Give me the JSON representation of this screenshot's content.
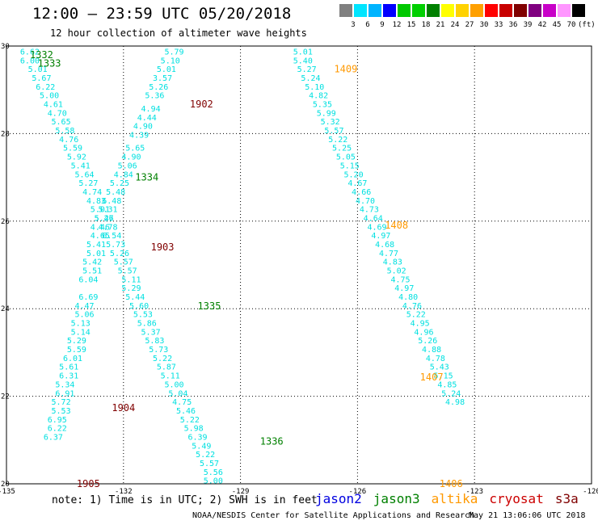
{
  "header": {
    "title": "12:00 — 23:59 UTC 05/20/2018",
    "subtitle": "12 hour collection of altimeter wave heights"
  },
  "scale": {
    "labels": [
      "3",
      "6",
      "9",
      "12",
      "15",
      "18",
      "21",
      "24",
      "27",
      "30",
      "33",
      "36",
      "39",
      "42",
      "45",
      "70",
      "(ft)"
    ],
    "colors": [
      "#808080",
      "#00e5ff",
      "#00b4ff",
      "#0000ff",
      "#00c800",
      "#00d000",
      "#008000",
      "#ffff00",
      "#ffd200",
      "#ffa000",
      "#ff0000",
      "#c80000",
      "#800000",
      "#800080",
      "#c800c8",
      "#ff96ff",
      "#000000"
    ]
  },
  "footer": {
    "note": "note: 1) Time is in UTC; 2) SWH is in feet",
    "satellites": [
      {
        "name": "jason2",
        "color": "#0000e0"
      },
      {
        "name": "jason3",
        "color": "#008000"
      },
      {
        "name": "altika",
        "color": "#ff9900"
      },
      {
        "name": "cryosat",
        "color": "#cc0000"
      },
      {
        "name": "s3a",
        "color": "#800000"
      }
    ],
    "credit": "NOAA/NESDIS Center for Satellite Applications and Research",
    "timestamp": "May 21 13:06:06 UTC 2018"
  },
  "chart_data": {
    "type": "scatter",
    "title": "12:00 — 23:59 UTC 05/20/2018",
    "subtitle": "12 hour collection of altimeter wave heights",
    "xlim": [
      -135,
      -120
    ],
    "ylim": [
      20,
      30
    ],
    "x_ticks": [
      "-135",
      "-132",
      "-129",
      "-126",
      "-123",
      "-120"
    ],
    "y_ticks": [
      "20",
      "22",
      "24",
      "26",
      "28",
      "30"
    ],
    "grid": true,
    "value_color": "#00e0e0",
    "tracks": [
      {
        "name": "jason3",
        "color": "#008000",
        "labels": [
          {
            "text": "1332",
            "lon": -134.1,
            "lat": 29.82
          },
          {
            "text": "1333",
            "lon": -133.9,
            "lat": 29.62
          },
          {
            "text": "1334",
            "lon": -131.4,
            "lat": 27.02
          },
          {
            "text": "1335",
            "lon": -129.8,
            "lat": 24.08
          },
          {
            "text": "1336",
            "lon": -128.2,
            "lat": 20.99
          }
        ],
        "points": [
          {
            "lon": -134.4,
            "lat": 29.88,
            "v": 6.62
          },
          {
            "lon": -134.4,
            "lat": 29.68,
            "v": 6.0
          },
          {
            "lon": -134.2,
            "lat": 29.48,
            "v": 5.01
          },
          {
            "lon": -134.1,
            "lat": 29.28,
            "v": 5.67
          },
          {
            "lon": -134.0,
            "lat": 29.08,
            "v": 6.22
          },
          {
            "lon": -133.9,
            "lat": 28.88,
            "v": 5.0
          },
          {
            "lon": -133.8,
            "lat": 28.68,
            "v": 4.61
          },
          {
            "lon": -133.7,
            "lat": 28.48,
            "v": 4.7
          },
          {
            "lon": -133.6,
            "lat": 28.28,
            "v": 5.65
          },
          {
            "lon": -133.5,
            "lat": 28.08,
            "v": 5.58
          },
          {
            "lon": -133.4,
            "lat": 27.88,
            "v": 4.76
          },
          {
            "lon": -133.3,
            "lat": 27.68,
            "v": 5.59
          },
          {
            "lon": -133.2,
            "lat": 27.48,
            "v": 5.92
          },
          {
            "lon": -133.1,
            "lat": 27.28,
            "v": 5.41
          },
          {
            "lon": -133.0,
            "lat": 27.08,
            "v": 5.64
          },
          {
            "lon": -132.9,
            "lat": 26.88,
            "v": 5.27
          },
          {
            "lon": -132.8,
            "lat": 26.68,
            "v": 4.74
          },
          {
            "lon": -132.7,
            "lat": 26.48,
            "v": 4.83
          },
          {
            "lon": -132.6,
            "lat": 26.28,
            "v": 5.01
          },
          {
            "lon": -132.5,
            "lat": 26.08,
            "v": 5.26
          },
          {
            "lon": -132.4,
            "lat": 25.88,
            "v": 4.78
          },
          {
            "lon": -132.3,
            "lat": 25.68,
            "v": 6.54
          },
          {
            "lon": -132.2,
            "lat": 25.48,
            "v": 5.73
          },
          {
            "lon": -132.1,
            "lat": 25.28,
            "v": 5.26
          },
          {
            "lon": -132.0,
            "lat": 25.08,
            "v": 5.57
          },
          {
            "lon": -131.9,
            "lat": 24.88,
            "v": 5.57
          },
          {
            "lon": -131.8,
            "lat": 24.68,
            "v": 5.11
          },
          {
            "lon": -131.8,
            "lat": 24.48,
            "v": 5.29
          },
          {
            "lon": -131.7,
            "lat": 24.28,
            "v": 5.44
          },
          {
            "lon": -131.6,
            "lat": 24.08,
            "v": 5.6
          },
          {
            "lon": -131.5,
            "lat": 23.88,
            "v": 5.53
          },
          {
            "lon": -131.4,
            "lat": 23.68,
            "v": 5.86
          },
          {
            "lon": -131.3,
            "lat": 23.48,
            "v": 5.37
          },
          {
            "lon": -131.2,
            "lat": 23.28,
            "v": 5.83
          },
          {
            "lon": -131.1,
            "lat": 23.08,
            "v": 5.73
          },
          {
            "lon": -131.0,
            "lat": 22.88,
            "v": 5.22
          },
          {
            "lon": -130.9,
            "lat": 22.68,
            "v": 5.87
          },
          {
            "lon": -130.8,
            "lat": 22.48,
            "v": 5.11
          },
          {
            "lon": -130.7,
            "lat": 22.28,
            "v": 5.0
          },
          {
            "lon": -130.6,
            "lat": 22.08,
            "v": 5.04
          },
          {
            "lon": -130.5,
            "lat": 21.88,
            "v": 4.75
          },
          {
            "lon": -130.4,
            "lat": 21.68,
            "v": 5.46
          },
          {
            "lon": -130.3,
            "lat": 21.48,
            "v": 5.22
          },
          {
            "lon": -130.2,
            "lat": 21.28,
            "v": 5.98
          },
          {
            "lon": -130.1,
            "lat": 21.08,
            "v": 6.39
          },
          {
            "lon": -130.0,
            "lat": 20.88,
            "v": 5.49
          },
          {
            "lon": -129.9,
            "lat": 20.68,
            "v": 5.22
          },
          {
            "lon": -129.8,
            "lat": 20.48,
            "v": 5.57
          },
          {
            "lon": -129.7,
            "lat": 20.28,
            "v": 5.56
          },
          {
            "lon": -129.7,
            "lat": 20.08,
            "v": 5.0
          }
        ]
      },
      {
        "name": "s3a",
        "color": "#800000",
        "labels": [
          {
            "text": "1902",
            "lon": -130.0,
            "lat": 28.69
          },
          {
            "text": "1903",
            "lon": -131.0,
            "lat": 25.42
          },
          {
            "text": "1904",
            "lon": -132.0,
            "lat": 21.75
          },
          {
            "text": "1905",
            "lon": -132.9,
            "lat": 20.02
          }
        ],
        "points": [
          {
            "lon": -130.7,
            "lat": 29.88,
            "v": 5.79
          },
          {
            "lon": -130.8,
            "lat": 29.68,
            "v": 5.1
          },
          {
            "lon": -130.9,
            "lat": 29.48,
            "v": 5.01
          },
          {
            "lon": -131.0,
            "lat": 29.28,
            "v": 3.57
          },
          {
            "lon": -131.1,
            "lat": 29.08,
            "v": 5.26
          },
          {
            "lon": -131.2,
            "lat": 28.88,
            "v": 5.36
          },
          {
            "lon": -131.3,
            "lat": 28.58,
            "v": 4.94
          },
          {
            "lon": -131.4,
            "lat": 28.38,
            "v": 4.44
          },
          {
            "lon": -131.5,
            "lat": 28.18,
            "v": 4.9
          },
          {
            "lon": -131.6,
            "lat": 27.98,
            "v": 4.39
          },
          {
            "lon": -131.7,
            "lat": 27.68,
            "v": 5.65
          },
          {
            "lon": -131.8,
            "lat": 27.48,
            "v": 4.9
          },
          {
            "lon": -131.9,
            "lat": 27.28,
            "v": 5.06
          },
          {
            "lon": -132.0,
            "lat": 27.08,
            "v": 4.84
          },
          {
            "lon": -132.1,
            "lat": 26.88,
            "v": 5.25
          },
          {
            "lon": -132.2,
            "lat": 26.68,
            "v": 5.48
          },
          {
            "lon": -132.3,
            "lat": 26.48,
            "v": 6.48
          },
          {
            "lon": -132.4,
            "lat": 26.28,
            "v": 5.31
          },
          {
            "lon": -132.5,
            "lat": 26.08,
            "v": 5.47
          },
          {
            "lon": -132.6,
            "lat": 25.88,
            "v": 4.46
          },
          {
            "lon": -132.6,
            "lat": 25.68,
            "v": 4.65
          },
          {
            "lon": -132.7,
            "lat": 25.48,
            "v": 5.41
          },
          {
            "lon": -132.7,
            "lat": 25.28,
            "v": 5.01
          },
          {
            "lon": -132.8,
            "lat": 25.08,
            "v": 5.42
          },
          {
            "lon": -132.8,
            "lat": 24.88,
            "v": 5.51
          },
          {
            "lon": -132.9,
            "lat": 24.68,
            "v": 6.04
          },
          {
            "lon": -132.9,
            "lat": 24.28,
            "v": 6.69
          },
          {
            "lon": -133.0,
            "lat": 24.08,
            "v": 4.47
          },
          {
            "lon": -133.0,
            "lat": 23.88,
            "v": 5.06
          },
          {
            "lon": -133.1,
            "lat": 23.68,
            "v": 5.13
          },
          {
            "lon": -133.1,
            "lat": 23.48,
            "v": 5.14
          },
          {
            "lon": -133.2,
            "lat": 23.28,
            "v": 5.29
          },
          {
            "lon": -133.2,
            "lat": 23.08,
            "v": 5.59
          },
          {
            "lon": -133.3,
            "lat": 22.88,
            "v": 6.01
          },
          {
            "lon": -133.4,
            "lat": 22.68,
            "v": 5.61
          },
          {
            "lon": -133.4,
            "lat": 22.48,
            "v": 6.31
          },
          {
            "lon": -133.5,
            "lat": 22.28,
            "v": 5.34
          },
          {
            "lon": -133.5,
            "lat": 22.08,
            "v": 6.91
          },
          {
            "lon": -133.6,
            "lat": 21.88,
            "v": 5.72
          },
          {
            "lon": -133.6,
            "lat": 21.68,
            "v": 5.53
          },
          {
            "lon": -133.7,
            "lat": 21.48,
            "v": 6.95
          },
          {
            "lon": -133.7,
            "lat": 21.28,
            "v": 6.22
          },
          {
            "lon": -133.8,
            "lat": 21.08,
            "v": 6.37
          }
        ]
      },
      {
        "name": "altika",
        "color": "#ff9900",
        "labels": [
          {
            "text": "1409",
            "lon": -126.3,
            "lat": 29.49
          },
          {
            "text": "1408",
            "lon": -125.0,
            "lat": 25.92
          },
          {
            "text": "1407",
            "lon": -124.1,
            "lat": 22.45
          },
          {
            "text": "1406",
            "lon": -123.6,
            "lat": 20.02
          }
        ],
        "points": [
          {
            "lon": -127.4,
            "lat": 29.88,
            "v": 5.01
          },
          {
            "lon": -127.4,
            "lat": 29.68,
            "v": 5.4
          },
          {
            "lon": -127.3,
            "lat": 29.48,
            "v": 5.27
          },
          {
            "lon": -127.2,
            "lat": 29.28,
            "v": 5.24
          },
          {
            "lon": -127.1,
            "lat": 29.08,
            "v": 5.1
          },
          {
            "lon": -127.0,
            "lat": 28.88,
            "v": 4.82
          },
          {
            "lon": -126.9,
            "lat": 28.68,
            "v": 5.35
          },
          {
            "lon": -126.8,
            "lat": 28.48,
            "v": 5.99
          },
          {
            "lon": -126.7,
            "lat": 28.28,
            "v": 5.32
          },
          {
            "lon": -126.6,
            "lat": 28.08,
            "v": 5.57
          },
          {
            "lon": -126.5,
            "lat": 27.88,
            "v": 5.22
          },
          {
            "lon": -126.4,
            "lat": 27.68,
            "v": 5.25
          },
          {
            "lon": -126.3,
            "lat": 27.48,
            "v": 5.05
          },
          {
            "lon": -126.2,
            "lat": 27.28,
            "v": 5.15
          },
          {
            "lon": -126.1,
            "lat": 27.08,
            "v": 5.2
          },
          {
            "lon": -126.0,
            "lat": 26.88,
            "v": 4.67
          },
          {
            "lon": -125.9,
            "lat": 26.68,
            "v": 4.66
          },
          {
            "lon": -125.8,
            "lat": 26.48,
            "v": 4.7
          },
          {
            "lon": -125.7,
            "lat": 26.28,
            "v": 4.73
          },
          {
            "lon": -125.6,
            "lat": 26.08,
            "v": 4.64
          },
          {
            "lon": -125.5,
            "lat": 25.88,
            "v": 4.69
          },
          {
            "lon": -125.4,
            "lat": 25.68,
            "v": 4.97
          },
          {
            "lon": -125.3,
            "lat": 25.48,
            "v": 4.68
          },
          {
            "lon": -125.2,
            "lat": 25.28,
            "v": 4.77
          },
          {
            "lon": -125.1,
            "lat": 25.08,
            "v": 4.83
          },
          {
            "lon": -125.0,
            "lat": 24.88,
            "v": 5.02
          },
          {
            "lon": -124.9,
            "lat": 24.68,
            "v": 4.75
          },
          {
            "lon": -124.8,
            "lat": 24.48,
            "v": 4.97
          },
          {
            "lon": -124.7,
            "lat": 24.28,
            "v": 4.8
          },
          {
            "lon": -124.6,
            "lat": 24.08,
            "v": 4.76
          },
          {
            "lon": -124.5,
            "lat": 23.88,
            "v": 5.22
          },
          {
            "lon": -124.4,
            "lat": 23.68,
            "v": 4.95
          },
          {
            "lon": -124.3,
            "lat": 23.48,
            "v": 4.96
          },
          {
            "lon": -124.2,
            "lat": 23.28,
            "v": 5.26
          },
          {
            "lon": -124.1,
            "lat": 23.08,
            "v": 4.88
          },
          {
            "lon": -124.0,
            "lat": 22.88,
            "v": 4.78
          },
          {
            "lon": -123.9,
            "lat": 22.68,
            "v": 5.43
          },
          {
            "lon": -123.8,
            "lat": 22.48,
            "v": 5.15
          },
          {
            "lon": -123.7,
            "lat": 22.28,
            "v": 4.85
          },
          {
            "lon": -123.6,
            "lat": 22.08,
            "v": 5.24
          },
          {
            "lon": -123.5,
            "lat": 21.88,
            "v": 4.98
          }
        ]
      }
    ]
  }
}
